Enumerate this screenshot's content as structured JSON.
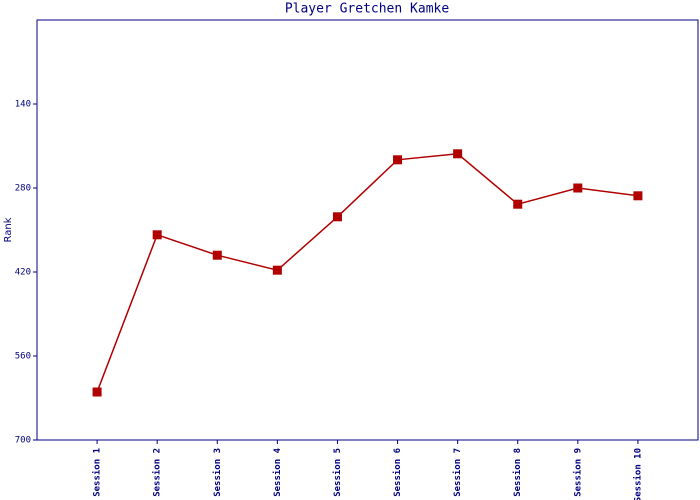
{
  "chart_data": {
    "type": "line",
    "title": "Player Gretchen Kamke",
    "y_label": "Rank",
    "categories": [
      "Session 1",
      "Session 2",
      "Session 3",
      "Session 4",
      "Session 5",
      "Session 6",
      "Session 7",
      "Session 8",
      "Session 9",
      "Session 10"
    ],
    "values": [
      620,
      358,
      392,
      417,
      328,
      233,
      223,
      307,
      280,
      293
    ],
    "color": "#b00000",
    "ylim": [
      0,
      700
    ],
    "yticks": [
      140,
      280,
      420,
      560,
      700
    ],
    "y_inverted": true
  }
}
